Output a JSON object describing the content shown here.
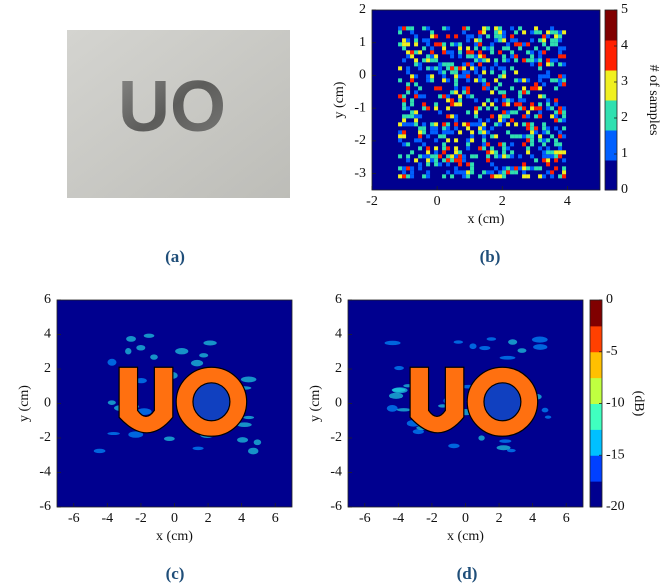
{
  "chart_data": [
    {
      "type": "image",
      "text": "UO",
      "caption": "(a)"
    },
    {
      "type": "heatmap",
      "caption": "(b)",
      "xlabel": "x (cm)",
      "ylabel": "y (cm)",
      "xlim": [
        -2,
        5
      ],
      "xticks": [
        -2,
        0,
        2,
        4
      ],
      "ylim": [
        -3.5,
        2
      ],
      "yticks": [
        -3,
        -2,
        -1,
        0,
        1,
        2
      ],
      "colorbar": {
        "label": "# of samples",
        "lim": [
          0,
          5
        ],
        "ticks": [
          0,
          1,
          2,
          3,
          4,
          5
        ],
        "colors": [
          "#00008f",
          "#0060ff",
          "#30e0b0",
          "#f0f020",
          "#ff2000",
          "#800000"
        ]
      }
    },
    {
      "type": "heatmap",
      "caption": "(c)",
      "xlabel": "x (cm)",
      "ylabel": "y (cm)",
      "xlim": [
        -7,
        7
      ],
      "xticks": [
        -6,
        -4,
        -2,
        0,
        2,
        4,
        6
      ],
      "ylim": [
        -6,
        6
      ],
      "yticks": [
        -6,
        -4,
        -2,
        0,
        2,
        4,
        6
      ]
    },
    {
      "type": "heatmap",
      "caption": "(d)",
      "xlabel": "x (cm)",
      "ylabel": "y (cm)",
      "xlim": [
        -7,
        7
      ],
      "xticks": [
        -6,
        -4,
        -2,
        0,
        2,
        4,
        6
      ],
      "ylim": [
        -6,
        6
      ],
      "yticks": [
        -6,
        -4,
        -2,
        0,
        2,
        4,
        6
      ],
      "colorbar": {
        "label": "(dB)",
        "lim": [
          -20,
          0
        ],
        "ticks": [
          0,
          -5,
          -10,
          -15,
          -20
        ],
        "colors": [
          "#00008f",
          "#0040ff",
          "#00c0ff",
          "#40ffc0",
          "#c0ff40",
          "#ffc000",
          "#ff4000",
          "#800000"
        ]
      }
    }
  ]
}
